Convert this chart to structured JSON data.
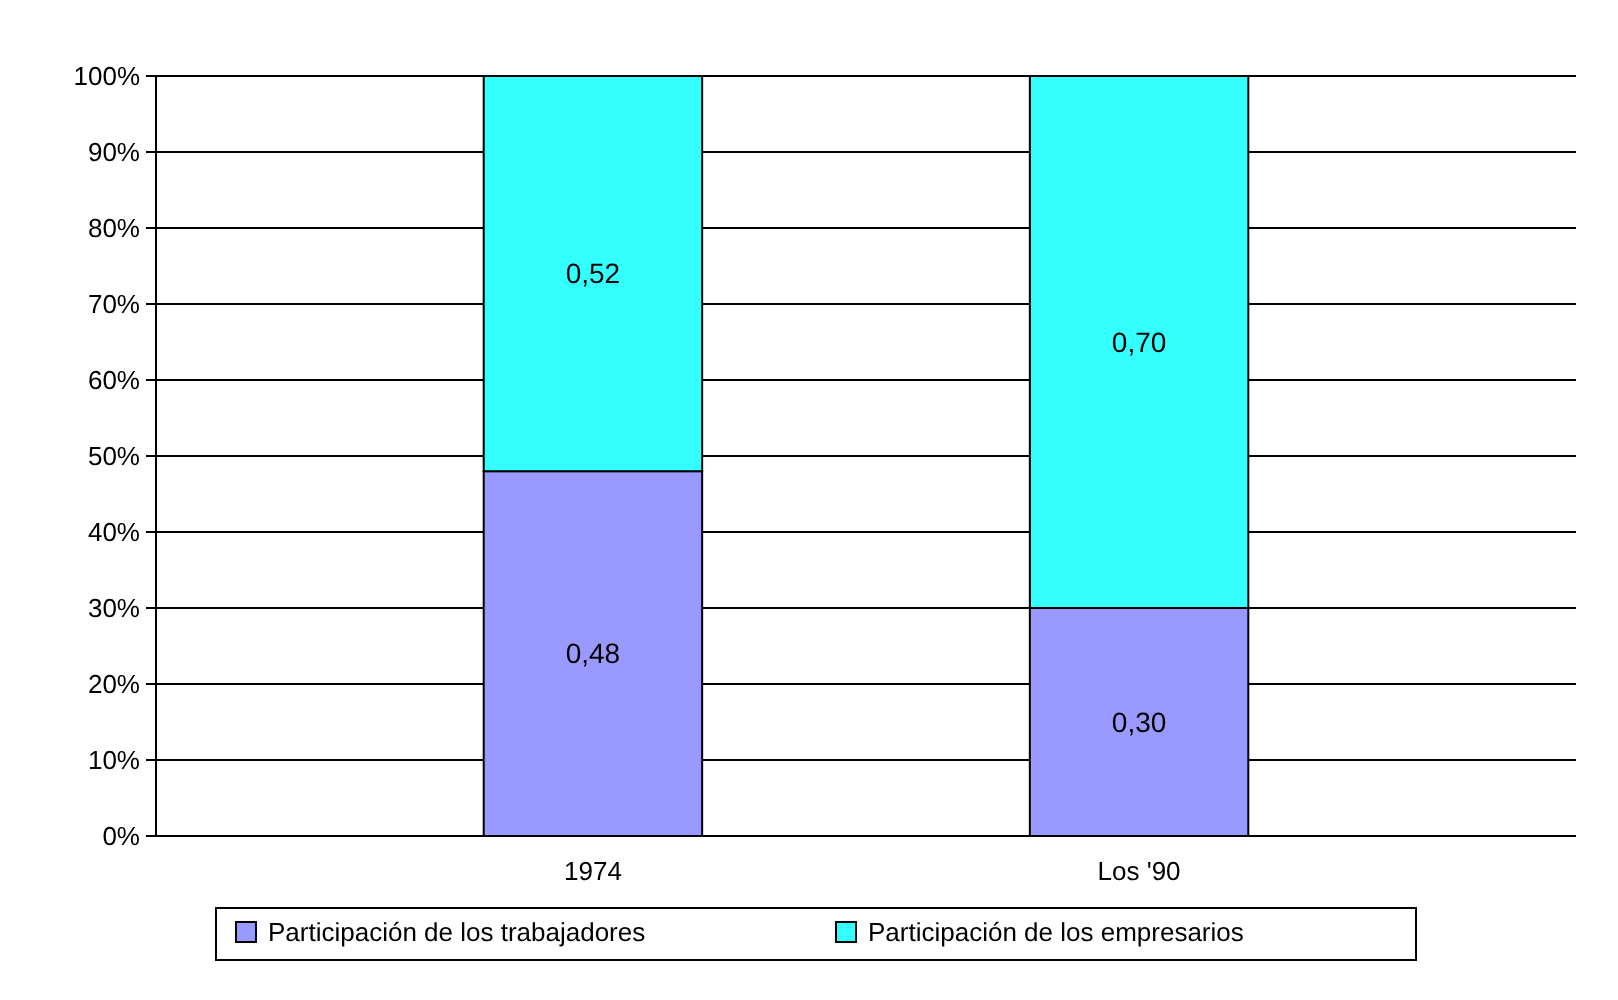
{
  "chart_data": {
    "type": "bar",
    "stacked": true,
    "categories": [
      "1974",
      "Los '90"
    ],
    "series": [
      {
        "name": "Participación de los trabajadores",
        "color": "#9999ff",
        "values": [
          0.48,
          0.3
        ],
        "value_labels": [
          "0,48",
          "0,30"
        ]
      },
      {
        "name": "Participación de los empresarios",
        "color": "#33ffff",
        "values": [
          0.52,
          0.7
        ],
        "value_labels": [
          "0,52",
          "0,70"
        ]
      }
    ],
    "ylim": [
      0,
      1
    ],
    "yticks": [
      {
        "value": 0,
        "label": "0%"
      },
      {
        "value": 0.1,
        "label": "10%"
      },
      {
        "value": 0.2,
        "label": "20%"
      },
      {
        "value": 0.3,
        "label": "30%"
      },
      {
        "value": 0.4,
        "label": "40%"
      },
      {
        "value": 0.5,
        "label": "50%"
      },
      {
        "value": 0.6,
        "label": "60%"
      },
      {
        "value": 0.7,
        "label": "70%"
      },
      {
        "value": 0.8,
        "label": "80%"
      },
      {
        "value": 0.9,
        "label": "90%"
      },
      {
        "value": 1,
        "label": "100%"
      }
    ],
    "grid": "y",
    "legend": "bottom"
  }
}
